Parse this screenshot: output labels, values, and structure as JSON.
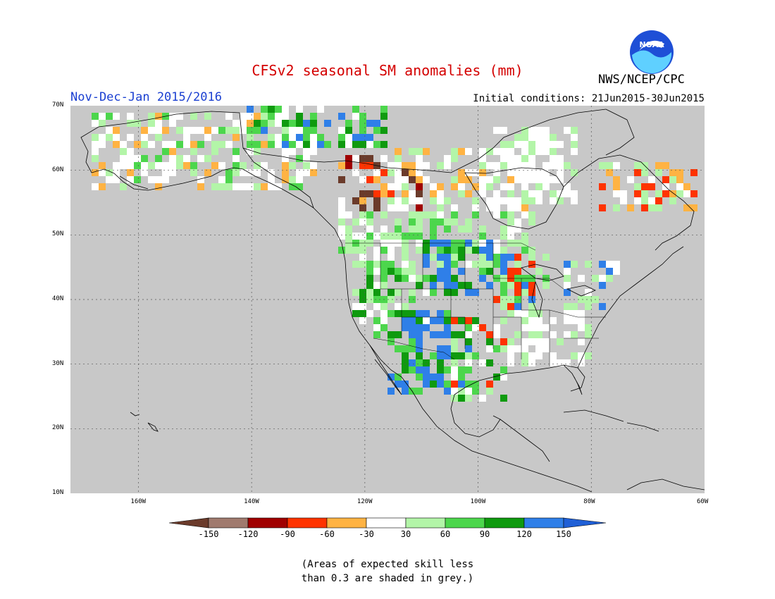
{
  "title": "CFSv2 seasonal SM anomalies (mm)",
  "season": "Nov-Dec-Jan 2015/2016",
  "initial_conditions": "Initial conditions: 21Jun2015-30Jun2015",
  "agency": "NWS/NCEP/CPC",
  "logo_text": "NOAA",
  "map": {
    "lon_range": [
      -172,
      -60
    ],
    "lat_range": [
      10,
      70
    ],
    "lat_labels": [
      "70N",
      "60N",
      "50N",
      "40N",
      "30N",
      "20N",
      "10N"
    ],
    "lon_labels": [
      "160W",
      "140W",
      "120W",
      "100W",
      "80W",
      "60W"
    ],
    "background_color": "#c8c8c8"
  },
  "legend": {
    "tick_labels": [
      "-150",
      "-120",
      "-90",
      "-60",
      "-30",
      "30",
      "60",
      "90",
      "120",
      "150"
    ],
    "colors": [
      "#6b3b2b",
      "#a07a6e",
      "#a00000",
      "#ff3300",
      "#ffb343",
      "#ffffff",
      "#b3f5a8",
      "#4cd64c",
      "#0f9a0f",
      "#2f7fe8",
      "#1f5fd6"
    ]
  },
  "note": {
    "line1": "(Areas of expected skill less",
    "line2": "than 0.3 are shaded in grey.)"
  }
}
